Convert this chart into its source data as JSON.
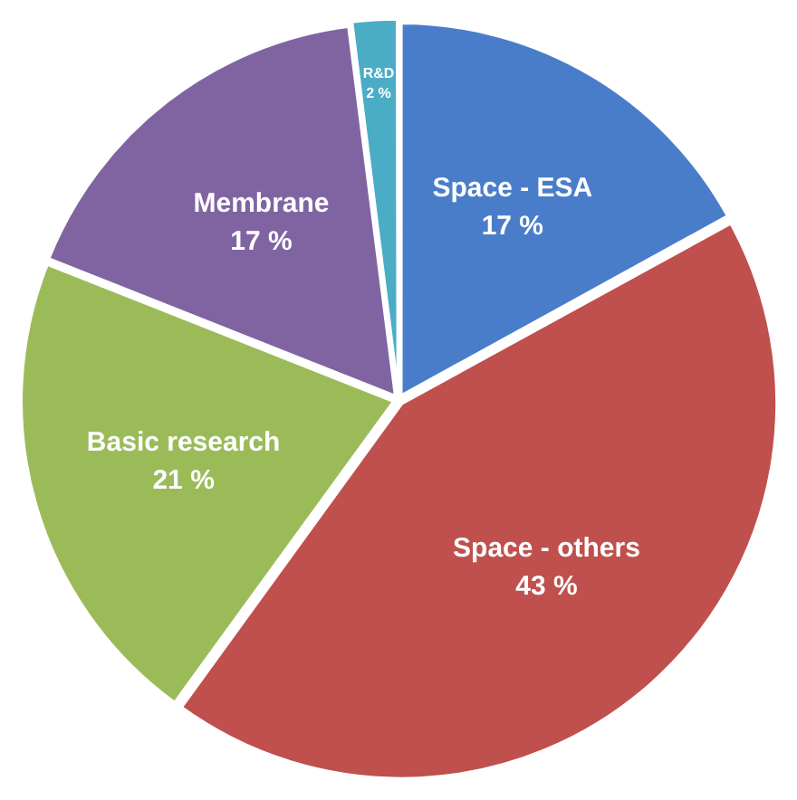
{
  "chart_data": {
    "type": "pie",
    "categories": [
      "Space - ESA",
      "Space - others",
      "Basic research",
      "Membrane",
      "R&D"
    ],
    "values": [
      17,
      43,
      21,
      17,
      2
    ],
    "colors": [
      "#4a7dc9",
      "#c0504d",
      "#9bbb59",
      "#8064a2",
      "#4bacc6"
    ],
    "value_labels": [
      "17 %",
      "43 %",
      "21 %",
      "17 %",
      "2 %"
    ],
    "legend": false
  }
}
